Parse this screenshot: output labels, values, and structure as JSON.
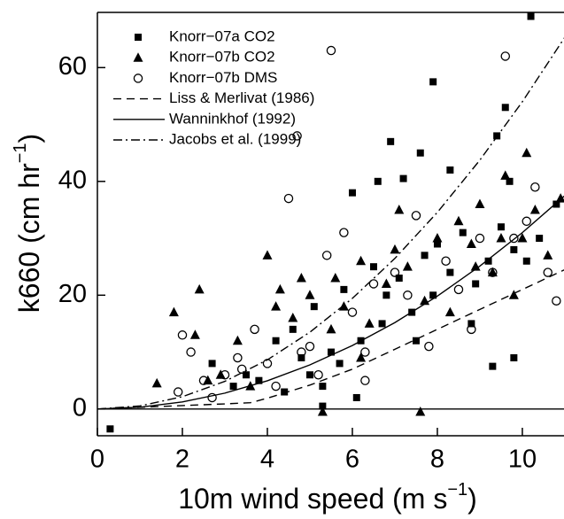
{
  "chart_data": {
    "type": "scatter",
    "x_label": {
      "text": "10m wind speed (m s",
      "sup": "−1",
      "end": ")"
    },
    "y_label": {
      "text": "k660 (cm hr",
      "sup": "−1",
      "end": ")"
    },
    "xlim": [
      0,
      10.98
    ],
    "ylim": [
      -4.7,
      69.7
    ],
    "xticks": [
      0,
      2,
      4,
      6,
      8,
      10
    ],
    "yticks": [
      0,
      20,
      40,
      60
    ],
    "hline": 0,
    "legend": "upper-left",
    "series": [
      {
        "name": "Knorr−07a CO2",
        "marker": "square",
        "color": "#000000",
        "x": [
          0.3,
          5.3,
          7.9,
          9.6,
          10.2,
          9.8,
          9.3,
          6.9,
          7.6,
          7.2,
          6.6,
          6,
          9.4,
          8.3,
          9.7,
          2.7,
          3.2,
          3.5,
          4.2,
          4.6,
          5.1,
          5.5,
          5.8,
          6.2,
          6.5,
          6.8,
          7.1,
          7.4,
          7.7,
          8.0,
          8.3,
          8.6,
          8.9,
          9.2,
          9.5,
          9.8,
          10.1,
          10.4,
          10.8,
          4.8,
          5,
          5.3,
          5.7,
          6.1,
          7.5,
          8.8,
          3.8,
          4.4,
          6.7,
          7.9
        ],
        "y": [
          -3.5,
          0.5,
          57.5,
          53,
          69,
          9,
          7.5,
          47,
          45,
          40.5,
          40,
          38,
          48,
          42,
          40,
          8,
          4,
          6,
          12,
          14,
          18,
          10,
          21,
          12,
          25,
          20,
          23,
          17,
          27,
          29,
          24,
          31,
          22,
          26,
          32,
          28,
          26,
          30,
          36,
          9,
          6,
          4,
          8,
          2,
          12,
          15,
          5,
          3,
          15,
          20
        ]
      },
      {
        "name": "Knorr−07b CO2",
        "marker": "triangle",
        "color": "#000000",
        "x": [
          1.4,
          1.8,
          2.3,
          2.4,
          2.9,
          3.3,
          4.0,
          4.3,
          4.6,
          4.8,
          5.0,
          5.3,
          5.5,
          5.8,
          6.2,
          6.4,
          6.8,
          7.0,
          7.3,
          7.6,
          7.7,
          8.0,
          8.3,
          8.5,
          8.8,
          9.0,
          9.3,
          9.6,
          9.8,
          10.1,
          10.3,
          10.6,
          10.9,
          10.0,
          9.5,
          4.2,
          6.2,
          7.1,
          5.6,
          3.6,
          2.6,
          8.9
        ],
        "y": [
          4.5,
          17,
          13,
          21,
          6,
          12,
          27,
          21,
          16,
          23,
          20,
          -0.5,
          14,
          18,
          9,
          15,
          22,
          28,
          25,
          -0.5,
          19,
          30,
          17,
          33,
          29,
          36,
          24,
          41,
          20,
          45,
          35,
          27,
          37,
          30,
          30,
          18,
          26,
          35,
          23,
          4,
          5,
          25
        ]
      },
      {
        "name": "Knorr−07b DMS",
        "marker": "circle",
        "color": "#000000",
        "x": [
          1.9,
          2.0,
          2.2,
          2.5,
          2.7,
          3.0,
          3.3,
          3.7,
          4.0,
          4.2,
          4.5,
          4.7,
          5.0,
          5.4,
          5.5,
          5.8,
          6.0,
          6.3,
          6.5,
          7.0,
          7.3,
          7.5,
          7.8,
          8.2,
          8.5,
          8.8,
          9.0,
          9.3,
          9.6,
          9.8,
          10.1,
          10.3,
          10.6,
          10.8,
          6.3,
          3.4,
          4.8,
          5.2
        ],
        "y": [
          3,
          13,
          10,
          5,
          2,
          6,
          9,
          14,
          8,
          4,
          37,
          48,
          11,
          27,
          63,
          31,
          17,
          10,
          22,
          24,
          20,
          34,
          11,
          26,
          21,
          14,
          30,
          24,
          62,
          30,
          33,
          39,
          24,
          19,
          5,
          7,
          10,
          6
        ]
      },
      {
        "name": "Liss & Merlivat (1986)",
        "line": "dashed",
        "color": "#000000",
        "x": [
          0,
          1,
          2,
          3,
          3.6,
          4,
          5,
          6,
          7,
          8,
          9,
          10,
          11
        ],
        "y": [
          0,
          0.3,
          0.6,
          0.9,
          1.1,
          1.9,
          4.2,
          7,
          10.5,
          14,
          17.5,
          21,
          24.5
        ]
      },
      {
        "name": "Wanninkhof (1992)",
        "line": "solid",
        "color": "#000000",
        "x": [
          0,
          1,
          2,
          3,
          4,
          5,
          6,
          7,
          8,
          9,
          10,
          11
        ],
        "y": [
          0,
          0.31,
          1.24,
          2.79,
          4.96,
          7.75,
          11.16,
          15.19,
          19.84,
          25.11,
          31,
          37.51
        ]
      },
      {
        "name": "Jacobs et al. (1999)",
        "line": "dashdot",
        "color": "#000000",
        "x": [
          0,
          1,
          2,
          3,
          4,
          5,
          6,
          7,
          8,
          9,
          10,
          11
        ],
        "y": [
          0,
          0.54,
          2.16,
          4.86,
          8.64,
          13.5,
          19.44,
          26.46,
          34.56,
          43.74,
          54,
          65.34
        ]
      }
    ]
  }
}
